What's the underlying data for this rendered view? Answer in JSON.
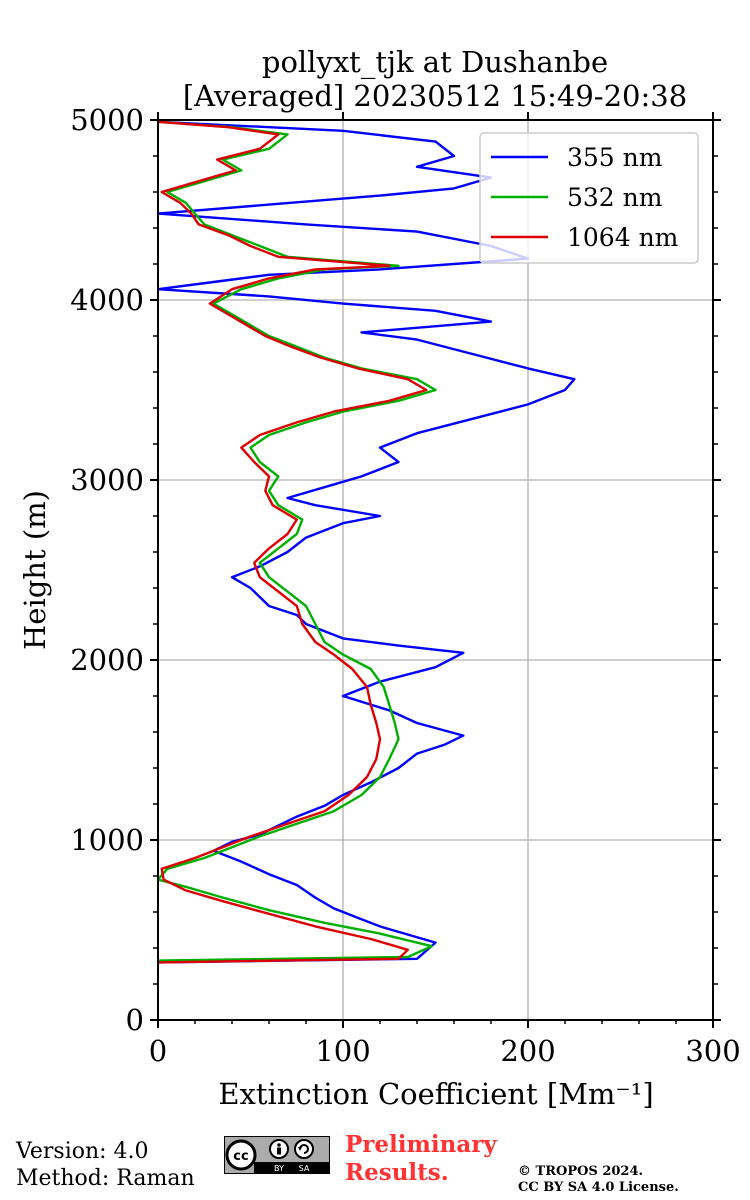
{
  "chart_data": {
    "type": "line",
    "title_line1": "pollyxt_tjk at Dushanbe",
    "title_line2": "[Averaged] 20230512 15:49-20:38",
    "xlabel": "Extinction Coefficient [Mm⁻¹]",
    "ylabel": "Height (m)",
    "xlim": [
      0,
      300
    ],
    "ylim": [
      0,
      5000
    ],
    "x_ticks": [
      "0",
      "100",
      "200",
      "300"
    ],
    "y_ticks": [
      "0",
      "1000",
      "2000",
      "3000",
      "4000",
      "5000"
    ],
    "grid": true,
    "legend_position": "top-right",
    "series": [
      {
        "name": "355 nm",
        "color": "#0000ff",
        "points": [
          [
            0,
            320
          ],
          [
            140,
            340
          ],
          [
            150,
            430
          ],
          [
            120,
            520
          ],
          [
            110,
            560
          ],
          [
            95,
            620
          ],
          [
            85,
            680
          ],
          [
            75,
            750
          ],
          [
            60,
            810
          ],
          [
            45,
            880
          ],
          [
            30,
            940
          ],
          [
            40,
            990
          ],
          [
            55,
            1030
          ],
          [
            65,
            1080
          ],
          [
            75,
            1130
          ],
          [
            90,
            1190
          ],
          [
            100,
            1250
          ],
          [
            115,
            1320
          ],
          [
            130,
            1400
          ],
          [
            140,
            1480
          ],
          [
            155,
            1530
          ],
          [
            165,
            1580
          ],
          [
            140,
            1650
          ],
          [
            125,
            1720
          ],
          [
            100,
            1800
          ],
          [
            120,
            1880
          ],
          [
            150,
            1960
          ],
          [
            165,
            2040
          ],
          [
            130,
            2080
          ],
          [
            100,
            2120
          ],
          [
            80,
            2200
          ],
          [
            75,
            2250
          ],
          [
            60,
            2300
          ],
          [
            50,
            2400
          ],
          [
            40,
            2460
          ],
          [
            55,
            2520
          ],
          [
            70,
            2600
          ],
          [
            80,
            2680
          ],
          [
            100,
            2760
          ],
          [
            120,
            2800
          ],
          [
            85,
            2860
          ],
          [
            70,
            2900
          ],
          [
            90,
            2960
          ],
          [
            110,
            3020
          ],
          [
            130,
            3100
          ],
          [
            120,
            3180
          ],
          [
            140,
            3260
          ],
          [
            170,
            3340
          ],
          [
            200,
            3420
          ],
          [
            220,
            3500
          ],
          [
            225,
            3560
          ],
          [
            200,
            3620
          ],
          [
            170,
            3700
          ],
          [
            140,
            3780
          ],
          [
            110,
            3820
          ],
          [
            180,
            3880
          ],
          [
            150,
            3940
          ],
          [
            100,
            3980
          ],
          [
            60,
            4020
          ],
          [
            0,
            4060
          ],
          [
            30,
            4100
          ],
          [
            60,
            4140
          ],
          [
            120,
            4170
          ],
          [
            200,
            4230
          ],
          [
            180,
            4300
          ],
          [
            140,
            4380
          ],
          [
            80,
            4420
          ],
          [
            0,
            4480
          ],
          [
            60,
            4530
          ],
          [
            120,
            4580
          ],
          [
            160,
            4620
          ],
          [
            180,
            4680
          ],
          [
            140,
            4740
          ],
          [
            160,
            4800
          ],
          [
            150,
            4880
          ],
          [
            100,
            4940
          ],
          [
            0,
            4990
          ]
        ]
      },
      {
        "name": "532 nm",
        "color": "#00b000",
        "points": [
          [
            0,
            330
          ],
          [
            135,
            350
          ],
          [
            148,
            410
          ],
          [
            120,
            480
          ],
          [
            90,
            540
          ],
          [
            60,
            610
          ],
          [
            35,
            680
          ],
          [
            15,
            740
          ],
          [
            0,
            780
          ],
          [
            5,
            840
          ],
          [
            25,
            900
          ],
          [
            40,
            960
          ],
          [
            55,
            1020
          ],
          [
            75,
            1090
          ],
          [
            95,
            1160
          ],
          [
            110,
            1250
          ],
          [
            120,
            1350
          ],
          [
            125,
            1450
          ],
          [
            130,
            1560
          ],
          [
            128,
            1650
          ],
          [
            125,
            1750
          ],
          [
            122,
            1850
          ],
          [
            115,
            1950
          ],
          [
            100,
            2030
          ],
          [
            90,
            2100
          ],
          [
            85,
            2200
          ],
          [
            80,
            2300
          ],
          [
            70,
            2380
          ],
          [
            60,
            2460
          ],
          [
            55,
            2540
          ],
          [
            65,
            2620
          ],
          [
            75,
            2700
          ],
          [
            78,
            2780
          ],
          [
            65,
            2860
          ],
          [
            60,
            2940
          ],
          [
            65,
            3020
          ],
          [
            55,
            3100
          ],
          [
            50,
            3180
          ],
          [
            60,
            3250
          ],
          [
            80,
            3320
          ],
          [
            100,
            3380
          ],
          [
            130,
            3440
          ],
          [
            150,
            3500
          ],
          [
            140,
            3560
          ],
          [
            110,
            3620
          ],
          [
            90,
            3680
          ],
          [
            75,
            3740
          ],
          [
            60,
            3800
          ],
          [
            50,
            3860
          ],
          [
            40,
            3920
          ],
          [
            30,
            3980
          ],
          [
            45,
            4060
          ],
          [
            65,
            4120
          ],
          [
            90,
            4170
          ],
          [
            130,
            4190
          ],
          [
            70,
            4240
          ],
          [
            55,
            4300
          ],
          [
            40,
            4360
          ],
          [
            25,
            4420
          ],
          [
            20,
            4480
          ],
          [
            15,
            4540
          ],
          [
            5,
            4600
          ],
          [
            25,
            4660
          ],
          [
            45,
            4720
          ],
          [
            35,
            4780
          ],
          [
            60,
            4840
          ],
          [
            70,
            4920
          ],
          [
            40,
            4960
          ],
          [
            0,
            4990
          ]
        ]
      },
      {
        "name": "1064 nm",
        "color": "#dd0000",
        "points": [
          [
            0,
            320
          ],
          [
            130,
            340
          ],
          [
            135,
            390
          ],
          [
            115,
            450
          ],
          [
            85,
            520
          ],
          [
            60,
            590
          ],
          [
            35,
            660
          ],
          [
            15,
            720
          ],
          [
            3,
            780
          ],
          [
            2,
            840
          ],
          [
            20,
            900
          ],
          [
            35,
            960
          ],
          [
            50,
            1020
          ],
          [
            70,
            1090
          ],
          [
            90,
            1160
          ],
          [
            103,
            1250
          ],
          [
            113,
            1350
          ],
          [
            118,
            1450
          ],
          [
            120,
            1560
          ],
          [
            118,
            1650
          ],
          [
            115,
            1750
          ],
          [
            113,
            1850
          ],
          [
            105,
            1950
          ],
          [
            95,
            2030
          ],
          [
            85,
            2100
          ],
          [
            78,
            2200
          ],
          [
            75,
            2300
          ],
          [
            65,
            2380
          ],
          [
            55,
            2460
          ],
          [
            52,
            2540
          ],
          [
            60,
            2620
          ],
          [
            70,
            2700
          ],
          [
            75,
            2780
          ],
          [
            62,
            2860
          ],
          [
            58,
            2940
          ],
          [
            60,
            3020
          ],
          [
            52,
            3100
          ],
          [
            45,
            3180
          ],
          [
            55,
            3250
          ],
          [
            75,
            3320
          ],
          [
            95,
            3380
          ],
          [
            125,
            3440
          ],
          [
            145,
            3500
          ],
          [
            135,
            3560
          ],
          [
            108,
            3620
          ],
          [
            88,
            3680
          ],
          [
            72,
            3740
          ],
          [
            58,
            3800
          ],
          [
            48,
            3860
          ],
          [
            38,
            3920
          ],
          [
            28,
            3980
          ],
          [
            40,
            4060
          ],
          [
            60,
            4120
          ],
          [
            85,
            4170
          ],
          [
            125,
            4190
          ],
          [
            65,
            4240
          ],
          [
            50,
            4300
          ],
          [
            38,
            4360
          ],
          [
            22,
            4420
          ],
          [
            18,
            4480
          ],
          [
            12,
            4540
          ],
          [
            2,
            4600
          ],
          [
            22,
            4660
          ],
          [
            42,
            4720
          ],
          [
            32,
            4780
          ],
          [
            55,
            4840
          ],
          [
            65,
            4920
          ],
          [
            38,
            4960
          ],
          [
            0,
            4990
          ]
        ]
      }
    ]
  },
  "footer": {
    "version": "Version: 4.0",
    "method": "Method: Raman",
    "preliminary_line1": "Preliminary",
    "preliminary_line2": "Results.",
    "copyright_line1": "© TROPOS 2024.",
    "copyright_line2": "CC BY SA 4.0 License."
  },
  "license_badge": {
    "icons": [
      "cc-icon",
      "by-icon",
      "sa-icon"
    ],
    "text_by": "BY",
    "text_sa": "SA"
  }
}
